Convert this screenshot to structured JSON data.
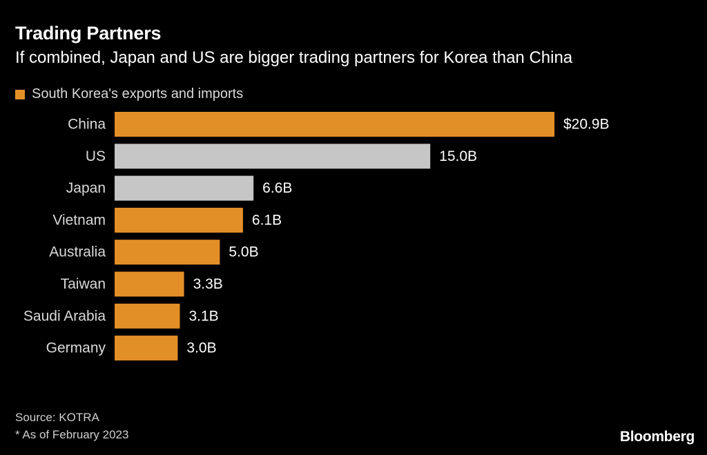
{
  "chart_data": {
    "type": "bar",
    "orientation": "horizontal",
    "title": "Trading Partners",
    "subtitle": "If combined, Japan and US are bigger trading partners for Korea than China",
    "legend": [
      {
        "label": "South Korea's exports and imports",
        "color": "#e38f28"
      }
    ],
    "categories": [
      "China",
      "US",
      "Japan",
      "Vietnam",
      "Australia",
      "Taiwan",
      "Saudi Arabia",
      "Germany"
    ],
    "values": [
      20.9,
      15.0,
      6.6,
      6.1,
      5.0,
      3.3,
      3.1,
      3.0
    ],
    "value_labels": [
      "$20.9B",
      "15.0B",
      "6.6B",
      "6.1B",
      "5.0B",
      "3.3B",
      "3.1B",
      "3.0B"
    ],
    "bar_colors": [
      "#e38f28",
      "#c6c6c6",
      "#c6c6c6",
      "#e38f28",
      "#e38f28",
      "#e38f28",
      "#e38f28",
      "#e38f28"
    ],
    "unit": "Billion USD",
    "xlim": [
      0,
      20.9
    ]
  },
  "footer": {
    "source": "Source: KOTRA",
    "note": "* As of February 2023",
    "brand": "Bloomberg"
  }
}
